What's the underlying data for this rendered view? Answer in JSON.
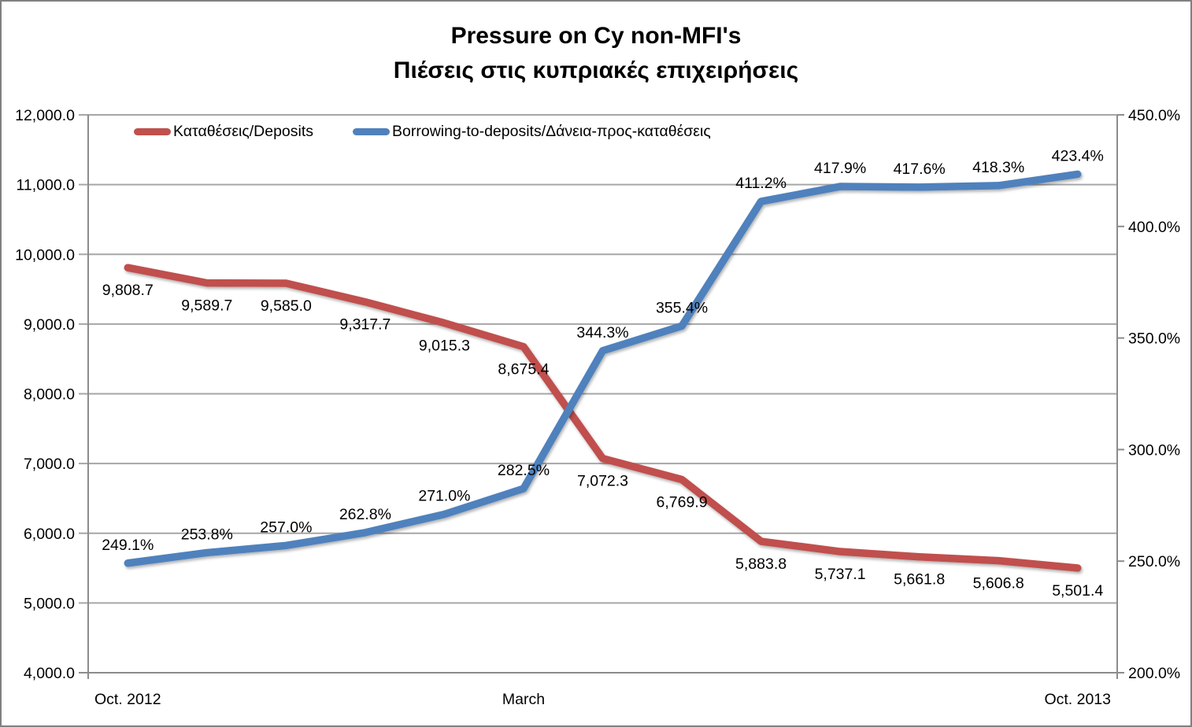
{
  "chart_data": {
    "type": "line",
    "title": "Pressure on Cy non-MFI's",
    "subtitle": "Πιέσεις στις κυπριακές επιχειρήσεις",
    "legend_position": "top",
    "grid": true,
    "x_tick_labels": [
      {
        "index": 0,
        "label": "Oct. 2012"
      },
      {
        "index": 5,
        "label": "March"
      },
      {
        "index": 12,
        "label": "Oct. 2013"
      }
    ],
    "left_axis": {
      "min": 4000,
      "max": 12000,
      "step": 1000,
      "tick_labels": [
        "4,000.0",
        "5,000.0",
        "6,000.0",
        "7,000.0",
        "8,000.0",
        "9,000.0",
        "10,000.0",
        "11,000.0",
        "12,000.0"
      ]
    },
    "right_axis": {
      "min": 200,
      "max": 450,
      "step": 50,
      "tick_labels": [
        "200.0%",
        "250.0%",
        "300.0%",
        "350.0%",
        "400.0%",
        "450.0%"
      ]
    },
    "series": [
      {
        "name": "Καταθέσεις/Deposits",
        "axis": "left",
        "color": "#C0504D",
        "label_placement": "below",
        "values": [
          9808.7,
          9589.7,
          9585.0,
          9317.7,
          9015.3,
          8675.4,
          7072.3,
          6769.9,
          5883.8,
          5737.1,
          5661.8,
          5606.8,
          5501.4
        ],
        "labels": [
          "9,808.7",
          "9,589.7",
          "9,585.0",
          "9,317.7",
          "9,015.3",
          "8,675.4",
          "7,072.3",
          "6,769.9",
          "5,883.8",
          "5,737.1",
          "5,661.8",
          "5,606.8",
          "5,501.4"
        ]
      },
      {
        "name": "Borrowing-to-deposits/Δάνεια-προς-καταθέσεις",
        "axis": "right",
        "color": "#4F81BD",
        "label_placement": "above",
        "values": [
          249.1,
          253.8,
          257.0,
          262.8,
          271.0,
          282.5,
          344.3,
          355.4,
          411.2,
          417.9,
          417.6,
          418.3,
          423.4
        ],
        "labels": [
          "249.1%",
          "253.8%",
          "257.0%",
          "262.8%",
          "271.0%",
          "282.5%",
          "344.3%",
          "355.4%",
          "411.2%",
          "417.9%",
          "417.6%",
          "418.3%",
          "423.4%"
        ]
      }
    ],
    "colors": {
      "gridline": "#A6A6A6",
      "axis_line": "#8C8C8C"
    }
  }
}
